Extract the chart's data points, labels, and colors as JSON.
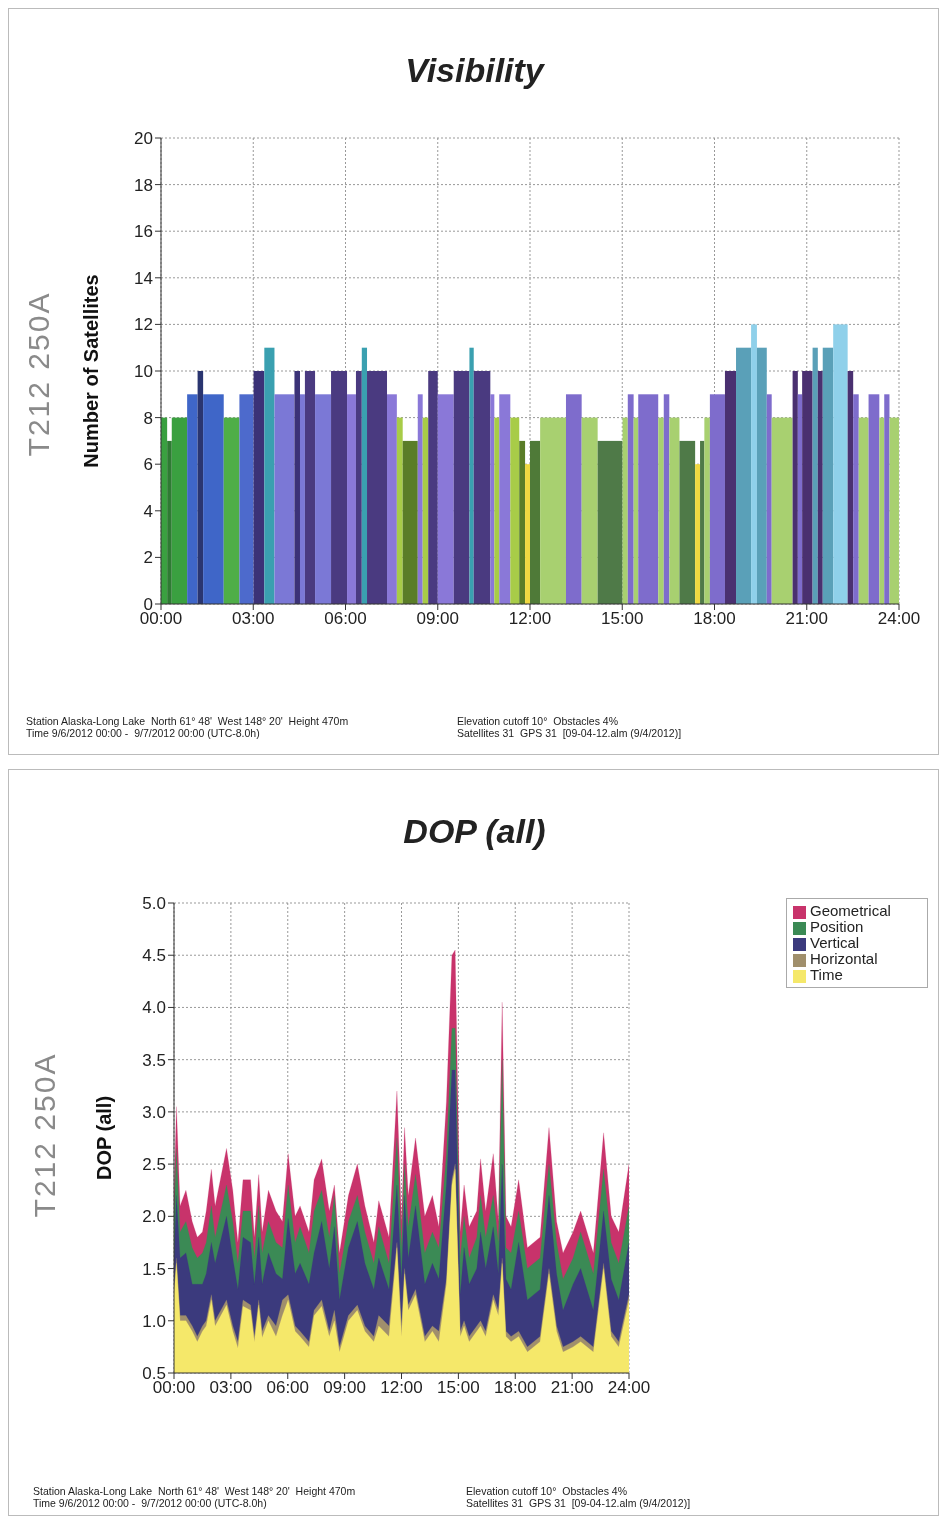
{
  "chart_data": [
    {
      "type": "histogram",
      "title": "Visibility",
      "ylabel": "Number of Satellites",
      "grid": true,
      "legend": false,
      "xlim": [
        0,
        24
      ],
      "xticks": [
        {
          "value": 0,
          "label": "00:00"
        },
        {
          "value": 3,
          "label": "03:00"
        },
        {
          "value": 6,
          "label": "06:00"
        },
        {
          "value": 9,
          "label": "09:00"
        },
        {
          "value": 12,
          "label": "12:00"
        },
        {
          "value": 15,
          "label": "15:00"
        },
        {
          "value": 18,
          "label": "18:00"
        },
        {
          "value": 21,
          "label": "21:00"
        },
        {
          "value": 24,
          "label": "24:00"
        }
      ],
      "ylim": [
        0,
        20
      ],
      "yticks": [
        0,
        2,
        4,
        6,
        8,
        10,
        12,
        14,
        16,
        18,
        20
      ],
      "bins": [
        0,
        0.2,
        0.35,
        0.85,
        1.19,
        1.37,
        2.04,
        2.55,
        3.01,
        3.36,
        3.69,
        4.34,
        4.52,
        4.68,
        5.01,
        5.53,
        6.05,
        6.34,
        6.53,
        6.7,
        7.35,
        7.67,
        7.86,
        8.35,
        8.51,
        8.69,
        9.0,
        9.52,
        10.03,
        10.17,
        10.71,
        10.84,
        11.0,
        11.36,
        11.65,
        11.84,
        12.0,
        12.33,
        13.17,
        13.68,
        14.2,
        15.01,
        15.18,
        15.37,
        15.52,
        16.17,
        16.35,
        16.53,
        16.86,
        17.37,
        17.53,
        17.67,
        17.85,
        18.34,
        18.7,
        19.19,
        19.38,
        19.7,
        19.86,
        20.54,
        20.71,
        20.85,
        21.19,
        21.36,
        21.52,
        21.86,
        22.33,
        22.51,
        22.69,
        23.01,
        23.36,
        23.52,
        23.69,
        24
      ],
      "values": [
        8,
        7,
        8,
        9,
        10,
        9,
        8,
        9,
        10,
        11,
        9,
        10,
        9,
        10,
        9,
        10,
        9,
        10,
        11,
        10,
        9,
        8,
        7,
        9,
        8,
        10,
        9,
        10,
        11,
        10,
        9,
        8,
        9,
        8,
        7,
        6,
        7,
        8,
        9,
        8,
        7,
        8,
        9,
        8,
        9,
        8,
        9,
        8,
        7,
        6,
        7,
        8,
        9,
        10,
        11,
        12,
        11,
        9,
        8,
        10,
        9,
        10,
        11,
        10,
        11,
        12,
        10,
        9,
        8,
        9,
        8,
        9,
        8
      ],
      "colors": [
        "#3aa040",
        "#2e7a33",
        "#3aa040",
        "#3f66c8",
        "#2a3570",
        "#3f66c8",
        "#4fae48",
        "#4d6acc",
        "#3b3277",
        "#3aa0b0",
        "#7b78d6",
        "#3b3277",
        "#7b78d6",
        "#4a3a80",
        "#7b78d6",
        "#4a3a80",
        "#8a78d8",
        "#4a3a80",
        "#3aa0b0",
        "#4a3a80",
        "#8a78d8",
        "#a8cc48",
        "#5a7d28",
        "#8a78d8",
        "#a8cc48",
        "#4a3a80",
        "#8a78d8",
        "#4a3a80",
        "#3aa0b0",
        "#4a3a80",
        "#8a78d8",
        "#a8cc48",
        "#8a78d8",
        "#a8cc48",
        "#5a7d28",
        "#f0d840",
        "#4f7a38",
        "#a8d070",
        "#7e6ccc",
        "#a8d070",
        "#4f7a48",
        "#a8d070",
        "#7e6ccc",
        "#a8d070",
        "#7e6ccc",
        "#a8d070",
        "#7e6ccc",
        "#a8d070",
        "#4f7a48",
        "#f0d840",
        "#4f7a48",
        "#a8d070",
        "#7e6ccc",
        "#4a3070",
        "#5aa0b8",
        "#8fd0ea",
        "#5aa0b8",
        "#7e6ccc",
        "#a8d070",
        "#4a3070",
        "#7e6ccc",
        "#4a3070",
        "#5aa0b8",
        "#4a3070",
        "#5aa0b8",
        "#8fd0ea",
        "#4a3070",
        "#7e6ccc",
        "#a8d070",
        "#7e6ccc",
        "#a8d070",
        "#7e6ccc",
        "#a8d070"
      ],
      "annotations": [
        "T212 250A",
        "Station Alaska-Long Lake  North 61° 48'  West 148° 20'  Height 470m",
        "Time 9/6/2012 00:00 -  9/7/2012 00:00 (UTC-8.0h)",
        "Elevation cutoff 10°  Obstacles 4%",
        "Satellites 31  GPS 31  [09-04-12.alm (9/4/2012)]"
      ]
    },
    {
      "type": "area",
      "title": "DOP (all)",
      "ylabel": "DOP (all)",
      "grid": true,
      "legend": "top right",
      "marker": "none",
      "xlim": [
        0,
        24
      ],
      "xticks": [
        {
          "value": 0,
          "label": "00:00"
        },
        {
          "value": 3,
          "label": "03:00"
        },
        {
          "value": 6,
          "label": "06:00"
        },
        {
          "value": 9,
          "label": "09:00"
        },
        {
          "value": 12,
          "label": "12:00"
        },
        {
          "value": 15,
          "label": "15:00"
        },
        {
          "value": 18,
          "label": "18:00"
        },
        {
          "value": 21,
          "label": "21:00"
        },
        {
          "value": 24,
          "label": "24:00"
        }
      ],
      "ylim": [
        0.5,
        5
      ],
      "yticks": [
        0.5,
        {
          "value": 1,
          "label": "1.0"
        },
        1.5,
        {
          "value": 2,
          "label": "2.0"
        },
        2.5,
        {
          "value": 3,
          "label": "3.0"
        },
        3.5,
        {
          "value": 4,
          "label": "4.0"
        },
        4.5,
        {
          "value": 5,
          "label": "5.0"
        }
      ],
      "x": [
        0,
        0.13,
        0.32,
        0.63,
        0.96,
        1.23,
        1.5,
        1.7,
        1.97,
        2.17,
        2.77,
        3.1,
        3.37,
        3.64,
        4.04,
        4.24,
        4.47,
        4.65,
        4.98,
        5.38,
        5.72,
        6.02,
        6.39,
        6.65,
        7.12,
        7.39,
        7.79,
        8.19,
        8.46,
        8.73,
        9.2,
        9.67,
        10.07,
        10.54,
        10.8,
        11.34,
        11.76,
        12.0,
        12.16,
        12.36,
        12.74,
        13.23,
        13.63,
        13.97,
        14.37,
        14.66,
        14.83,
        15.1,
        15.3,
        15.57,
        15.97,
        16.17,
        16.44,
        16.84,
        17.11,
        17.31,
        17.51,
        17.78,
        18.18,
        18.64,
        19.31,
        19.78,
        20.18,
        20.52,
        21.05,
        21.45,
        22.12,
        22.66,
        23.06,
        23.46,
        24
      ],
      "series": [
        {
          "name": "Geometrical",
          "color": "#c8336b",
          "values": [
            2.2,
            3.05,
            2.1,
            2.25,
            1.95,
            1.8,
            1.85,
            2.05,
            2.45,
            2.1,
            2.65,
            2.25,
            1.75,
            2.35,
            2.35,
            1.8,
            2.4,
            1.85,
            2.25,
            2.05,
            1.95,
            2.6,
            2.0,
            2.1,
            1.85,
            2.35,
            2.55,
            2.05,
            2.3,
            1.65,
            2.2,
            2.5,
            2.1,
            1.75,
            2.15,
            1.8,
            3.2,
            1.95,
            2.85,
            2.2,
            2.75,
            2.0,
            2.2,
            1.9,
            3.1,
            4.5,
            4.55,
            1.85,
            2.3,
            1.9,
            2.05,
            2.55,
            2.05,
            2.6,
            1.95,
            4.05,
            2.0,
            1.9,
            2.35,
            1.7,
            1.8,
            2.85,
            1.95,
            1.65,
            1.85,
            2.05,
            1.65,
            2.8,
            2.0,
            1.85,
            2.5
          ]
        },
        {
          "name": "Position",
          "color": "#3b8a55",
          "values": [
            2.0,
            2.65,
            1.85,
            1.95,
            1.7,
            1.6,
            1.65,
            1.75,
            2.1,
            1.8,
            2.3,
            1.95,
            1.55,
            2.05,
            2.05,
            1.6,
            2.1,
            1.65,
            1.95,
            1.75,
            1.7,
            2.3,
            1.75,
            1.9,
            1.65,
            2.05,
            2.25,
            1.8,
            2.2,
            1.45,
            1.95,
            2.2,
            1.85,
            1.55,
            1.9,
            1.55,
            2.75,
            1.7,
            2.5,
            1.9,
            2.4,
            1.65,
            1.85,
            1.7,
            2.6,
            3.8,
            3.8,
            1.6,
            2.0,
            1.6,
            1.8,
            2.2,
            1.8,
            2.2,
            1.75,
            3.5,
            1.7,
            1.65,
            2.05,
            1.5,
            1.6,
            2.5,
            1.75,
            1.4,
            1.6,
            1.85,
            1.45,
            2.45,
            1.75,
            1.55,
            2.1
          ]
        },
        {
          "name": "Vertical",
          "color": "#3b3a7d",
          "values": [
            1.6,
            2.2,
            1.6,
            1.65,
            1.35,
            1.35,
            1.35,
            1.45,
            1.75,
            1.55,
            2.0,
            1.6,
            1.3,
            1.8,
            1.75,
            1.35,
            1.8,
            1.35,
            1.65,
            1.45,
            1.4,
            1.98,
            1.45,
            1.55,
            1.35,
            1.65,
            1.95,
            1.5,
            1.9,
            1.2,
            1.7,
            1.95,
            1.55,
            1.3,
            1.6,
            1.3,
            2.3,
            1.4,
            2.2,
            1.6,
            2.1,
            1.35,
            1.55,
            1.4,
            2.3,
            3.4,
            3.4,
            1.25,
            1.7,
            1.35,
            1.5,
            1.85,
            1.5,
            1.9,
            1.45,
            2.5,
            1.4,
            1.3,
            1.75,
            1.2,
            1.3,
            2.2,
            1.45,
            1.1,
            1.35,
            1.5,
            1.1,
            2.05,
            1.4,
            1.2,
            1.75
          ]
        },
        {
          "name": "Horizontal",
          "color": "#a08f6c",
          "values": [
            1.3,
            1.6,
            1.05,
            1.05,
            0.95,
            0.85,
            0.95,
            1.0,
            1.25,
            1.0,
            1.2,
            0.95,
            0.8,
            1.2,
            1.15,
            0.85,
            1.2,
            0.9,
            1.05,
            0.95,
            1.2,
            1.25,
            0.95,
            0.9,
            0.8,
            1.1,
            1.2,
            0.9,
            1.1,
            0.75,
            1.05,
            1.15,
            0.95,
            0.85,
            1.05,
            0.95,
            1.75,
            0.95,
            1.5,
            1.15,
            1.3,
            0.85,
            0.95,
            0.9,
            1.4,
            2.35,
            2.5,
            0.9,
            1.0,
            0.85,
            0.95,
            1.0,
            0.9,
            1.25,
            1.1,
            1.6,
            0.9,
            0.85,
            0.9,
            0.75,
            0.85,
            1.5,
            0.95,
            0.75,
            0.8,
            0.85,
            0.75,
            1.55,
            0.9,
            0.8,
            1.25
          ]
        },
        {
          "name": "Time",
          "color": "#f5e86a",
          "values": [
            1.25,
            1.55,
            1.0,
            1.0,
            0.9,
            0.8,
            0.9,
            0.95,
            1.2,
            0.95,
            1.15,
            0.9,
            0.74,
            1.14,
            1.1,
            0.8,
            1.15,
            0.84,
            1.0,
            0.85,
            1.05,
            1.2,
            0.9,
            0.85,
            0.75,
            1.05,
            1.14,
            0.85,
            1.0,
            0.7,
            1.0,
            1.1,
            0.9,
            0.8,
            0.95,
            0.85,
            1.7,
            0.85,
            1.45,
            1.1,
            1.25,
            0.8,
            0.9,
            0.8,
            1.35,
            2.3,
            2.45,
            0.85,
            0.95,
            0.8,
            0.9,
            0.95,
            0.85,
            1.2,
            1.05,
            1.55,
            0.85,
            0.8,
            0.85,
            0.7,
            0.8,
            1.45,
            0.9,
            0.7,
            0.75,
            0.8,
            0.7,
            1.5,
            0.85,
            0.75,
            1.2
          ]
        }
      ],
      "annotations": [
        "T212 250A",
        "Station Alaska-Long Lake  North 61° 48'  West 148° 20'  Height 470m",
        "Time 9/6/2012 00:00 -  9/7/2012 00:00 (UTC-8.0h)",
        "Elevation cutoff 10°  Obstacles 4%",
        "Satellites 31  GPS 31  [09-04-12.alm (9/4/2012)]"
      ]
    }
  ]
}
